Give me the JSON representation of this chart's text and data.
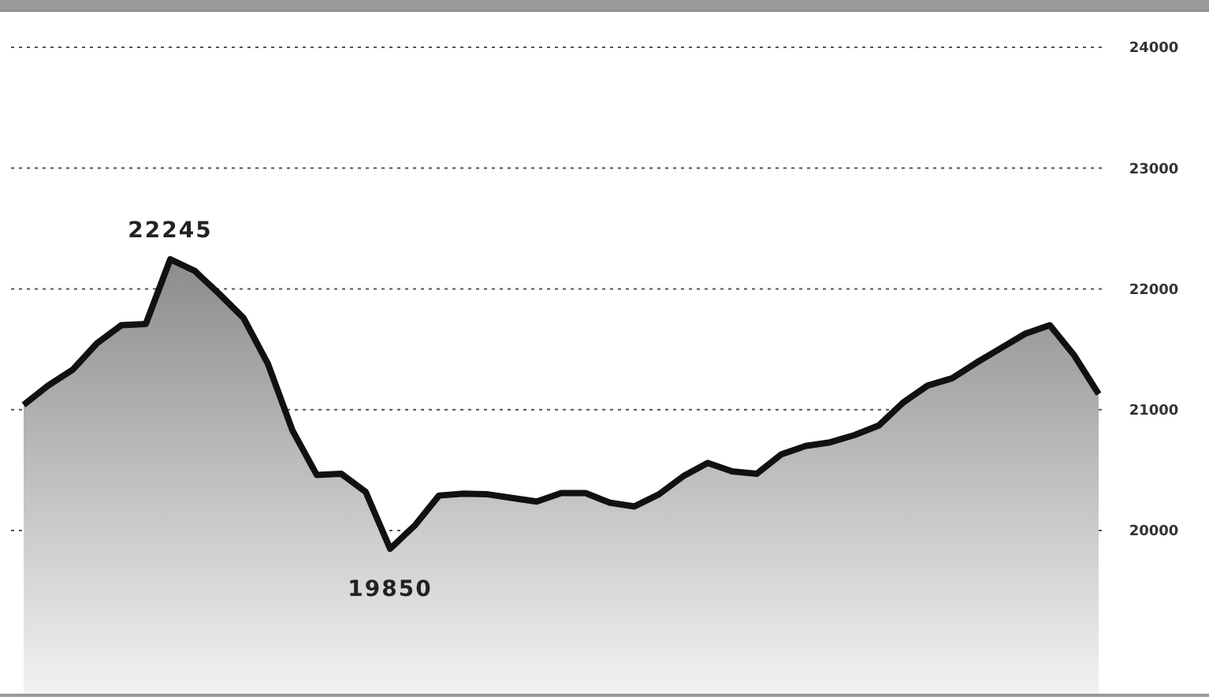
{
  "chart_data": {
    "type": "area",
    "categories": [
      null,
      null,
      null,
      null,
      null,
      null,
      null,
      null,
      null,
      null,
      null,
      null,
      null,
      null,
      null,
      null,
      null,
      null,
      null,
      null,
      null,
      null,
      null,
      null,
      null,
      null,
      null,
      null,
      null,
      null,
      null,
      null,
      null,
      null,
      null,
      null,
      null,
      null,
      null,
      null,
      null,
      null,
      null,
      null,
      null
    ],
    "series": [
      {
        "color": "#111111",
        "values": [
          21040,
          21200,
          21330,
          21550,
          21700,
          21710,
          22245,
          22150,
          21960,
          21760,
          21380,
          20830,
          20460,
          20470,
          20320,
          19850,
          20040,
          20290,
          20305,
          20300,
          20270,
          20240,
          20310,
          20310,
          20230,
          20200,
          20300,
          20450,
          20560,
          20490,
          20470,
          20630,
          20700,
          20730,
          20790,
          20870,
          21060,
          21200,
          21260,
          21390,
          21510,
          21630,
          21700,
          21450,
          21130
        ]
      }
    ],
    "ylim": [
      18650,
      24300
    ],
    "yticks": [
      20000,
      21000,
      22000,
      23000,
      24000
    ],
    "grid": "y",
    "line_style": "solid",
    "marker": "none",
    "annotations": [
      {
        "text": "22245",
        "y": 22245
      },
      {
        "text": "19850",
        "y": 19850
      }
    ]
  }
}
